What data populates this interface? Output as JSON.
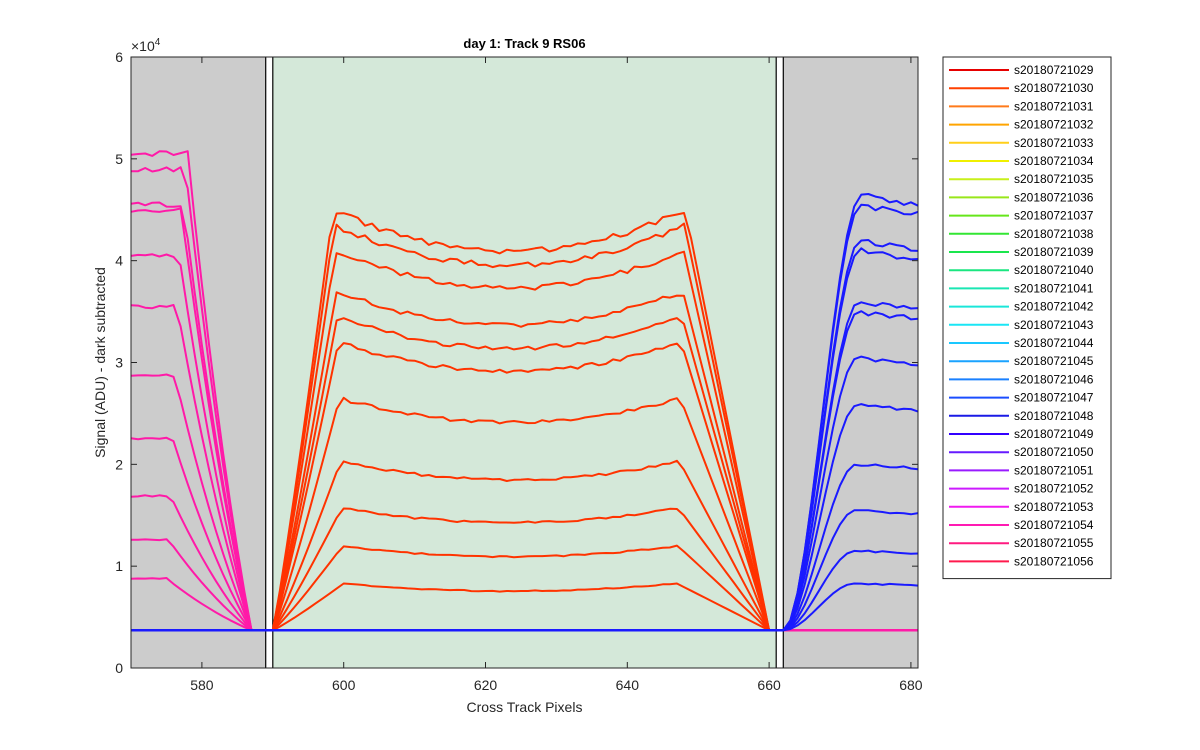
{
  "chart_data": {
    "type": "line",
    "title": "day 1: Track 9  RS06",
    "xlabel": "Cross Track Pixels",
    "ylabel": "Signal (ADU) - dark subtracted",
    "xlim": [
      570,
      681
    ],
    "ylim": [
      0,
      60000
    ],
    "y_exponent_label": "×10",
    "y_exponent_power": "4",
    "x_ticks": [
      580,
      600,
      620,
      640,
      660,
      680
    ],
    "x_tick_labels": [
      "580",
      "600",
      "620",
      "640",
      "660",
      "680"
    ],
    "y_ticks": [
      0,
      10000,
      20000,
      30000,
      40000,
      50000,
      60000
    ],
    "y_tick_labels": [
      "0",
      "1",
      "2",
      "3",
      "4",
      "5",
      "6"
    ],
    "grid": false,
    "legend_position": "outside-right",
    "baseline": 3700,
    "regions": [
      {
        "name": "left-masked",
        "x": [
          570,
          589
        ],
        "color": "#cccccc"
      },
      {
        "name": "active-area",
        "x": [
          590,
          661
        ],
        "color": "#d4e8d9"
      },
      {
        "name": "right-masked",
        "x": [
          662,
          681
        ],
        "color": "#cccccc"
      }
    ],
    "border_lines": [
      589,
      590,
      661,
      662
    ],
    "left_group": {
      "color": "#ff1aa8",
      "plateau_x": [
        570,
        575
      ],
      "fall_x": [
        576,
        589
      ],
      "levels": [
        8800,
        12600,
        16900,
        22500,
        28700,
        35500,
        40500,
        45000,
        45500,
        49000,
        50500
      ]
    },
    "center_group": {
      "color": "#ff3300",
      "rise_x": [
        590,
        601
      ],
      "fall_x": [
        647,
        660
      ],
      "levels": [
        8300,
        12000,
        15700,
        20300,
        26500,
        32000,
        34500,
        37000,
        41000,
        43500,
        45000
      ]
    },
    "right_group": {
      "color": "#1a1aff",
      "rise_x": [
        662,
        673
      ],
      "levels": [
        8300,
        11500,
        15500,
        20000,
        25800,
        30500,
        35000,
        36000,
        41000,
        42000,
        45500,
        46500
      ]
    },
    "series": [
      {
        "name": "s20180721029",
        "color": "#e60000"
      },
      {
        "name": "s20180721030",
        "color": "#ff4000"
      },
      {
        "name": "s20180721031",
        "color": "#ff7a1a"
      },
      {
        "name": "s20180721032",
        "color": "#ffa500"
      },
      {
        "name": "s20180721033",
        "color": "#ffcf1a"
      },
      {
        "name": "s20180721034",
        "color": "#f0f000"
      },
      {
        "name": "s20180721035",
        "color": "#c8f01a"
      },
      {
        "name": "s20180721036",
        "color": "#99e61a"
      },
      {
        "name": "s20180721037",
        "color": "#66e61a"
      },
      {
        "name": "s20180721038",
        "color": "#33e633"
      },
      {
        "name": "s20180721039",
        "color": "#1ae64d"
      },
      {
        "name": "s20180721040",
        "color": "#1ae680"
      },
      {
        "name": "s20180721041",
        "color": "#1ae6b3"
      },
      {
        "name": "s20180721042",
        "color": "#1ae6d9"
      },
      {
        "name": "s20180721043",
        "color": "#1ae6f5"
      },
      {
        "name": "s20180721044",
        "color": "#1ac8ff"
      },
      {
        "name": "s20180721045",
        "color": "#1aa3ff"
      },
      {
        "name": "s20180721046",
        "color": "#1a80ff"
      },
      {
        "name": "s20180721047",
        "color": "#1a4dff"
      },
      {
        "name": "s20180721048",
        "color": "#1a1ae6"
      },
      {
        "name": "s20180721049",
        "color": "#3300ff"
      },
      {
        "name": "s20180721050",
        "color": "#661aff"
      },
      {
        "name": "s20180721051",
        "color": "#991aff"
      },
      {
        "name": "s20180721052",
        "color": "#cc1aff"
      },
      {
        "name": "s20180721053",
        "color": "#f01af0"
      },
      {
        "name": "s20180721054",
        "color": "#ff1ab3"
      },
      {
        "name": "s20180721055",
        "color": "#ff1a80"
      },
      {
        "name": "s20180721056",
        "color": "#ff1a4d"
      }
    ]
  }
}
